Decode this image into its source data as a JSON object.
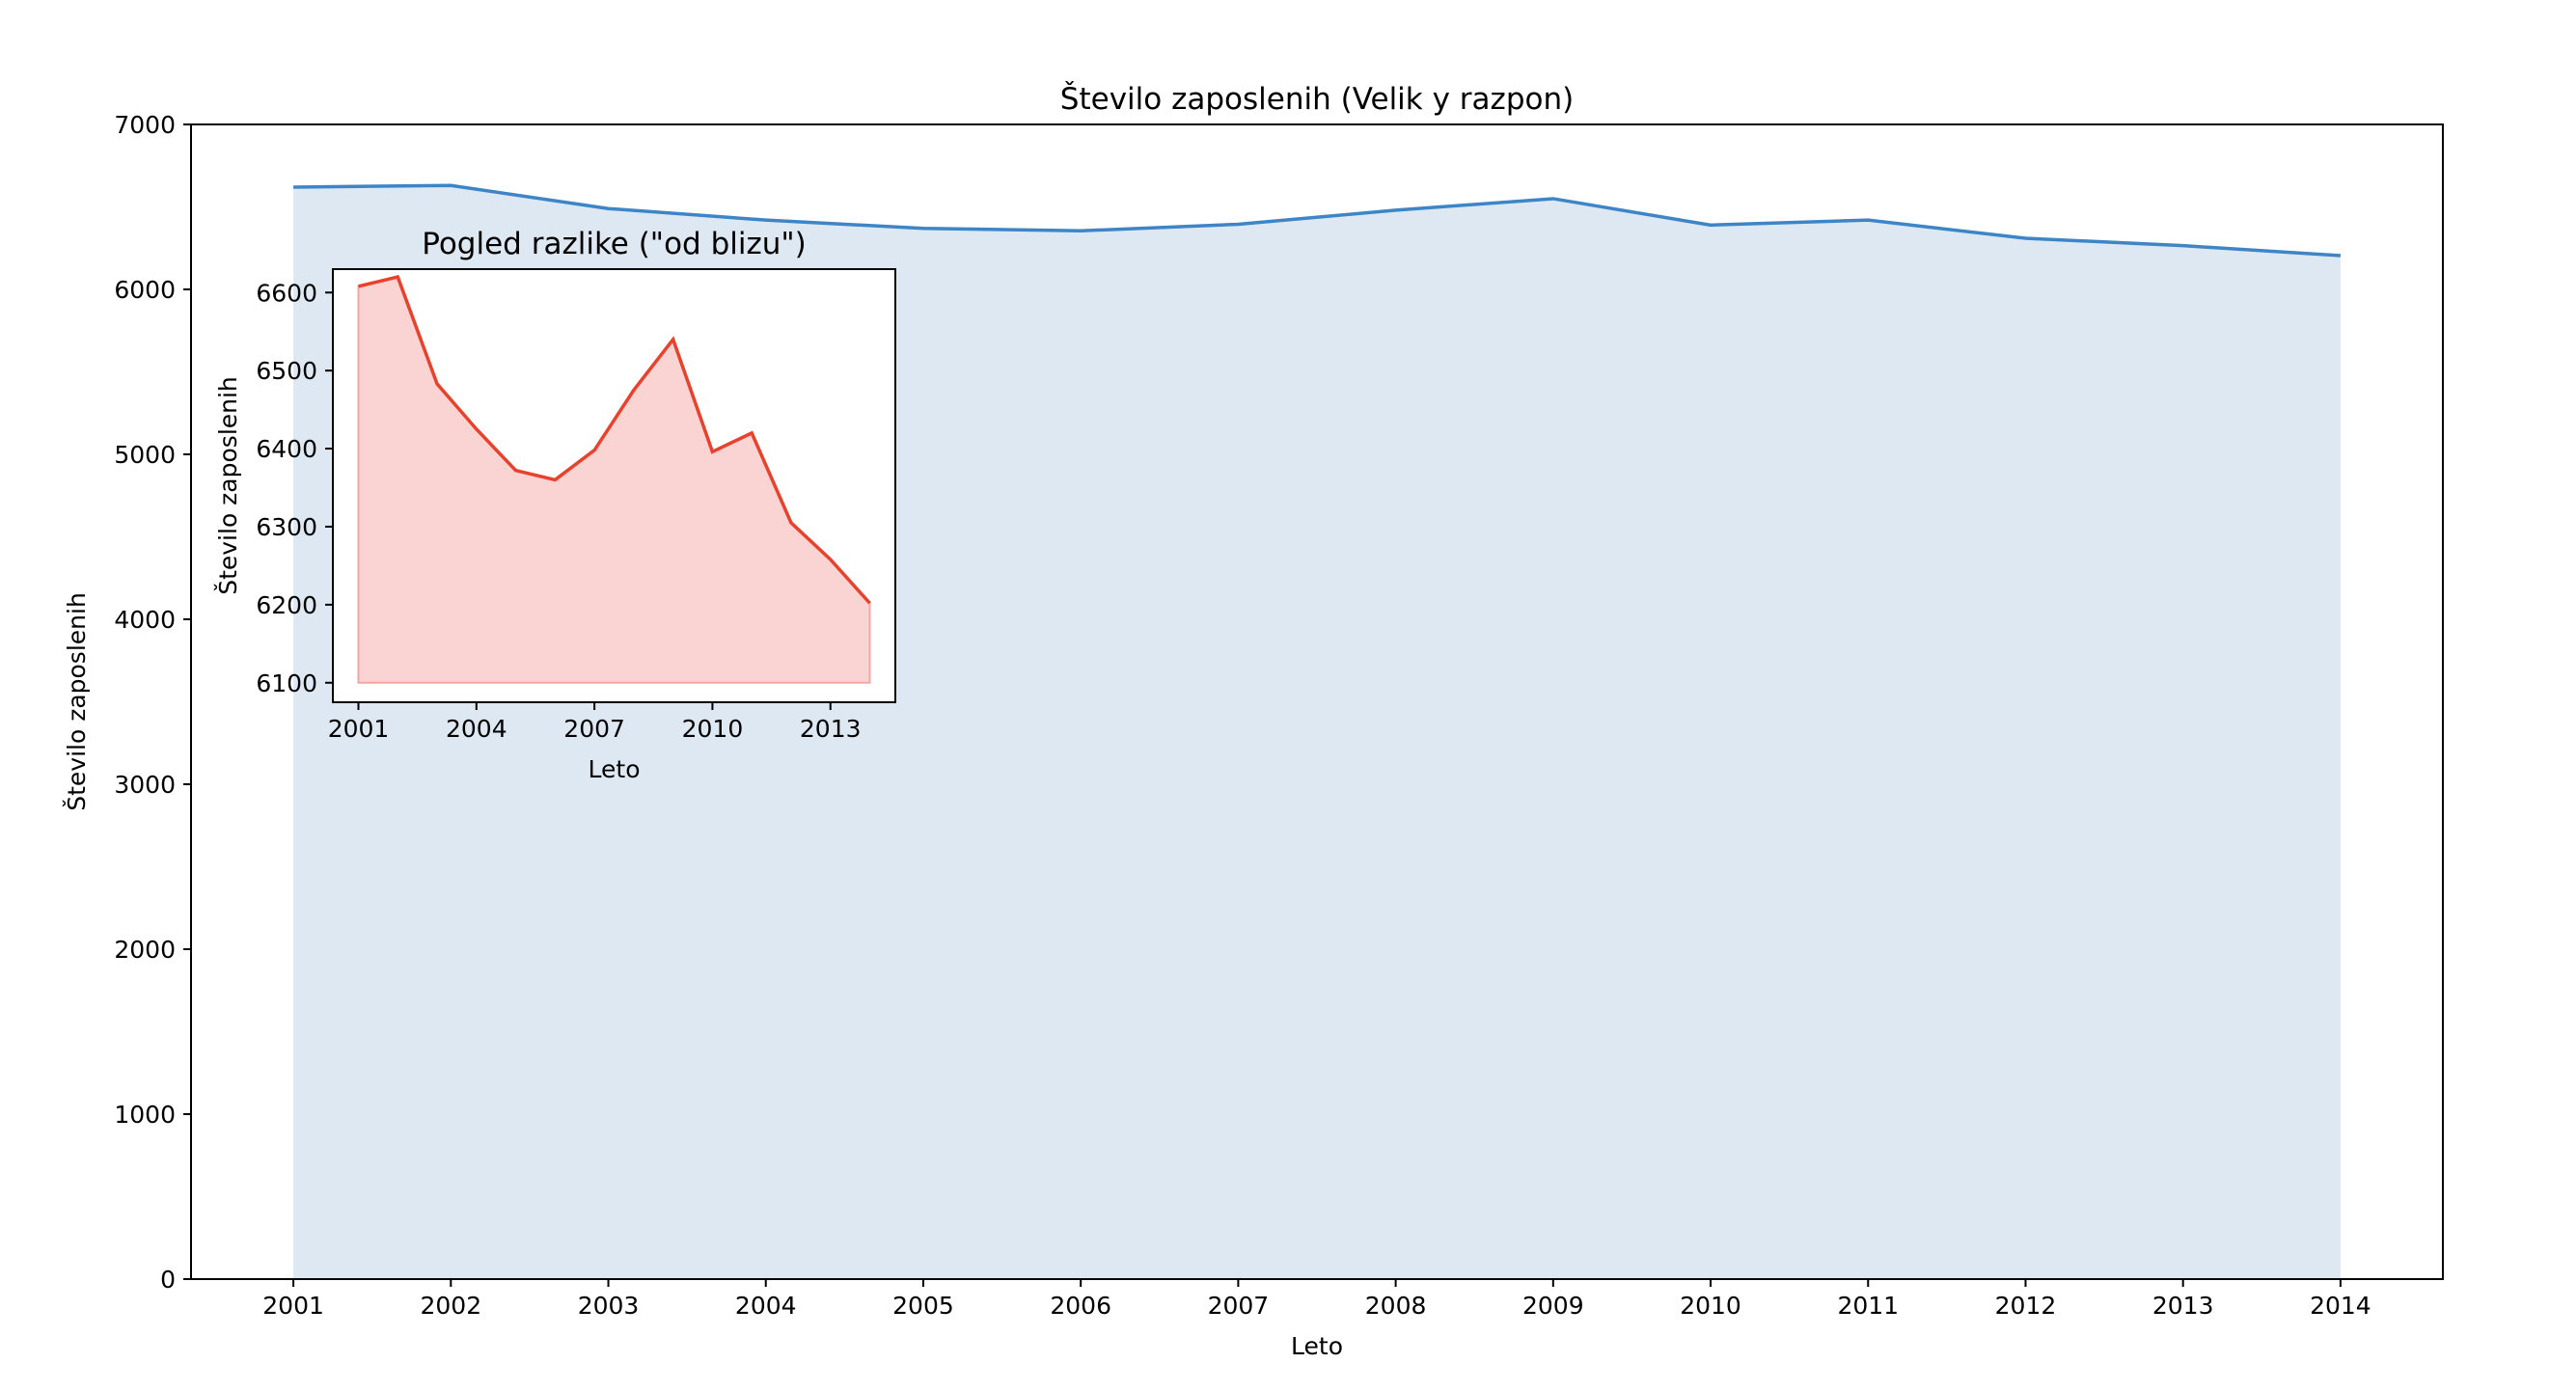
{
  "chart_data": [
    {
      "type": "area",
      "title": "Število zaposlenih (Velik y razpon)",
      "xlabel": "Leto",
      "ylabel": "Število zaposlenih",
      "x": [
        2001,
        2002,
        2003,
        2004,
        2005,
        2006,
        2007,
        2008,
        2009,
        2010,
        2011,
        2012,
        2013,
        2014
      ],
      "series": [
        {
          "values": [
            6620,
            6630,
            6490,
            6420,
            6370,
            6355,
            6395,
            6480,
            6550,
            6390,
            6420,
            6310,
            6265,
            6205
          ]
        }
      ],
      "xticks": [
        "2001",
        "2002",
        "2003",
        "2004",
        "2005",
        "2006",
        "2007",
        "2008",
        "2009",
        "2010",
        "2011",
        "2012",
        "2013",
        "2014"
      ],
      "yticks": [
        "0",
        "1000",
        "2000",
        "3000",
        "4000",
        "5000",
        "6000",
        "7000"
      ],
      "xlim": [
        2000.35,
        2014.65
      ],
      "ylim": [
        0,
        7000
      ],
      "grid": false,
      "colors": {
        "line": "#3d85c6",
        "fill": "#dee8f3"
      }
    },
    {
      "type": "area",
      "title": "Pogled razlike (\"od blizu\")",
      "xlabel": "Leto",
      "ylabel": "Število zaposlenih",
      "x": [
        2001,
        2002,
        2003,
        2004,
        2005,
        2006,
        2007,
        2008,
        2009,
        2010,
        2011,
        2012,
        2013,
        2014
      ],
      "series": [
        {
          "values": [
            6608,
            6620,
            6483,
            6425,
            6372,
            6360,
            6398,
            6475,
            6540,
            6396,
            6420,
            6305,
            6258,
            6202
          ]
        }
      ],
      "baseline": 6100,
      "xticks": [
        "2001",
        "2004",
        "2007",
        "2010",
        "2013"
      ],
      "yticks": [
        "6100",
        "6200",
        "6300",
        "6400",
        "6500",
        "6600"
      ],
      "xlim": [
        2000.35,
        2014.65
      ],
      "ylim": [
        6075,
        6630
      ],
      "grid": false,
      "legend": "none",
      "colors": {
        "line": "#e8412c",
        "fill": "#fad4d3",
        "fill_edge": "#f3a6a3"
      }
    }
  ]
}
